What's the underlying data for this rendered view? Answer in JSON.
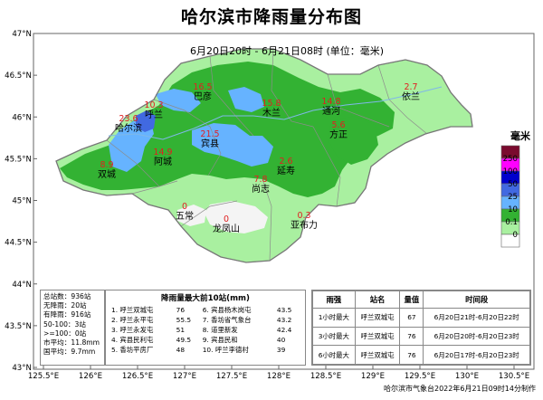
{
  "title": "哈尔滨市降雨量分布图",
  "subtitle": "6月20日20时  -  6月21日08时   (单位：毫米)",
  "axes": {
    "lat_ticks": [
      "47°N",
      "46.5°N",
      "46°N",
      "45.5°N",
      "45°N",
      "44.5°N",
      "44°N",
      "43.5°N",
      "43°N"
    ],
    "lon_ticks": [
      "125.5°E",
      "126°E",
      "126.5°E",
      "127°E",
      "127.5°E",
      "128°E",
      "128.5°E",
      "129°E",
      "129.5°E",
      "130°E",
      "130.5°E"
    ]
  },
  "places": [
    {
      "name": "呼兰",
      "value": "10.3"
    },
    {
      "name": "哈尔滨",
      "value": "23.6"
    },
    {
      "name": "巴彦",
      "value": "16.5"
    },
    {
      "name": "木兰",
      "value": "15.8"
    },
    {
      "name": "通河",
      "value": "14.8"
    },
    {
      "name": "依兰",
      "value": "2.7"
    },
    {
      "name": "方正",
      "value": "5.6"
    },
    {
      "name": "宾县",
      "value": "21.5"
    },
    {
      "name": "阿城",
      "value": "14.9"
    },
    {
      "name": "双城",
      "value": "8.9"
    },
    {
      "name": "延寿",
      "value": "2.6"
    },
    {
      "name": "尚志",
      "value": "7.8"
    },
    {
      "name": "五常",
      "value": "0"
    },
    {
      "name": "龙凤山",
      "value": "0"
    },
    {
      "name": "亚布力",
      "value": "0.3"
    }
  ],
  "legend": {
    "title": "毫米",
    "labels": [
      "250",
      "100",
      "50",
      "25",
      "10",
      "0.1",
      "0"
    ],
    "colors": [
      "#7a0a2e",
      "#ff00ff",
      "#0000cd",
      "#4169e1",
      "#66b3ff",
      "#33b233",
      "#a9f0a0",
      "#ffffff"
    ]
  },
  "stats": {
    "lines": [
      "总站数：936站",
      "无降雨：20站",
      "有降雨：916站",
      "50-100：3站",
      ">=100：0站",
      "市平均：11.8mm",
      "国平均：9.7mm"
    ]
  },
  "top10": {
    "title": "降雨量最大前10站(mm)",
    "rows": [
      [
        "1. 呼兰双城屯",
        "76",
        "6. 宾县杨木岗屯",
        "43.5"
      ],
      [
        "2. 呼兰永平屯",
        "55.5",
        "7. 香坊省气象台",
        "43.2"
      ],
      [
        "3. 呼兰永发屯",
        "51",
        "8. 道里新发",
        "42.4"
      ],
      [
        "4. 宾县民利屯",
        "49.5",
        "9. 宾县民和",
        "40"
      ],
      [
        "5. 香坊平房厂",
        "48",
        "10. 呼兰李德村",
        "39"
      ]
    ]
  },
  "intensity": {
    "headers": [
      "雨强",
      "站名",
      "量值",
      "时间段"
    ],
    "rows": [
      [
        "1小时最大",
        "呼兰双城屯",
        "67",
        "6月20日21时-6月20日22时"
      ],
      [
        "3小时最大",
        "呼兰双城屯",
        "76",
        "6月20日20时-6月20日23时"
      ],
      [
        "6小时最大",
        "呼兰双城屯",
        "76",
        "6月20日17时-6月20日23时"
      ]
    ]
  },
  "footer": "哈尔滨市气象台2022年6月21日09时14分制作"
}
